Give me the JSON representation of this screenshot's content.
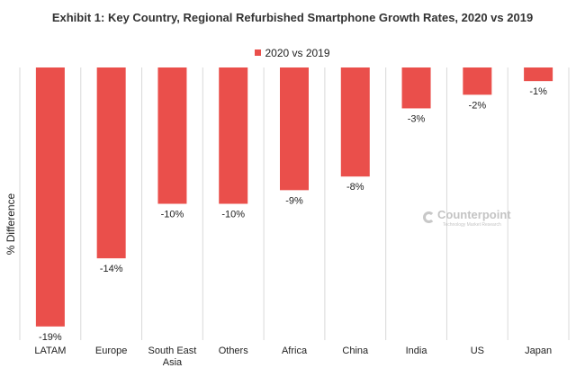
{
  "title": "Exhibit 1: Key Country, Regional Refurbished Smartphone Growth Rates, 2020 vs 2019",
  "legend": {
    "label": "2020 vs 2019",
    "color": "#ea4f4b"
  },
  "watermark": {
    "brand": "Counterpoint",
    "tagline": "Technology Market Research",
    "icon": "counterpoint-logo-icon"
  },
  "chart_data": {
    "type": "bar",
    "title": "Exhibit 1: Key Country, Regional Refurbished Smartphone Growth Rates, 2020 vs 2019",
    "xlabel": "",
    "ylabel": "% Difference",
    "categories": [
      "LATAM",
      "Europe",
      "South East Asia",
      "Others",
      "Africa",
      "China",
      "India",
      "US",
      "Japan"
    ],
    "series": [
      {
        "name": "2020 vs 2019",
        "values": [
          -19,
          -14,
          -10,
          -10,
          -9,
          -8,
          -3,
          -2,
          -1
        ],
        "color": "#ea4f4b"
      }
    ],
    "data_labels": [
      "-19%",
      "-14%",
      "-10%",
      "-10%",
      "-9%",
      "-8%",
      "-3%",
      "-2%",
      "-1%"
    ],
    "ylim": [
      -19,
      0
    ],
    "grid": true,
    "legend_position": "top-center"
  }
}
